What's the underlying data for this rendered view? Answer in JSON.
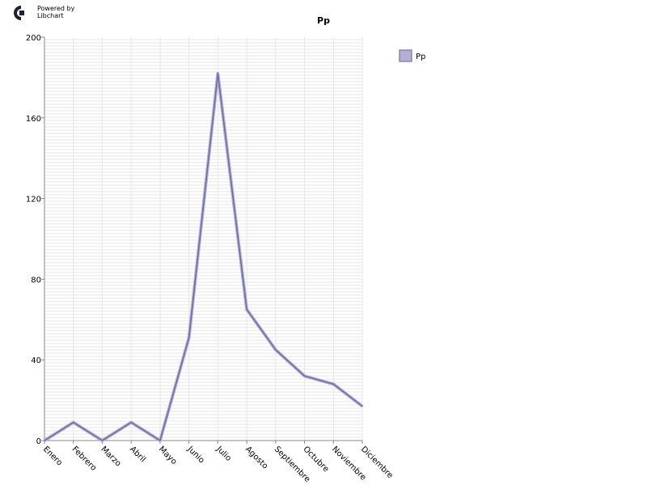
{
  "logo": {
    "line1": "Powered by",
    "line2": "Libchart",
    "icon": "libchart-logo-icon"
  },
  "colors": {
    "series": "#6f6c9c",
    "legend_fill": "#b3b0d8",
    "legend_stroke": "#8a87b4",
    "grid": "#e6e6e6",
    "axis": "#888888"
  },
  "chart_data": {
    "type": "line",
    "title": "Pp",
    "xlabel": "",
    "ylabel": "",
    "categories": [
      "Enero",
      "Febrero",
      "Marzo",
      "Abril",
      "Mayo",
      "Junio",
      "Julio",
      "Agosto",
      "Septiembre",
      "Octubre",
      "Noviembre",
      "Diciembre"
    ],
    "series": [
      {
        "name": "Pp",
        "values": [
          0,
          9,
          0,
          9,
          0,
          51,
          182,
          65,
          45,
          32,
          28,
          17
        ]
      }
    ],
    "ylim": [
      0,
      200
    ],
    "yticks": [
      "0",
      "40",
      "80",
      "120",
      "160",
      "200"
    ],
    "grid": true,
    "legend": "right"
  }
}
